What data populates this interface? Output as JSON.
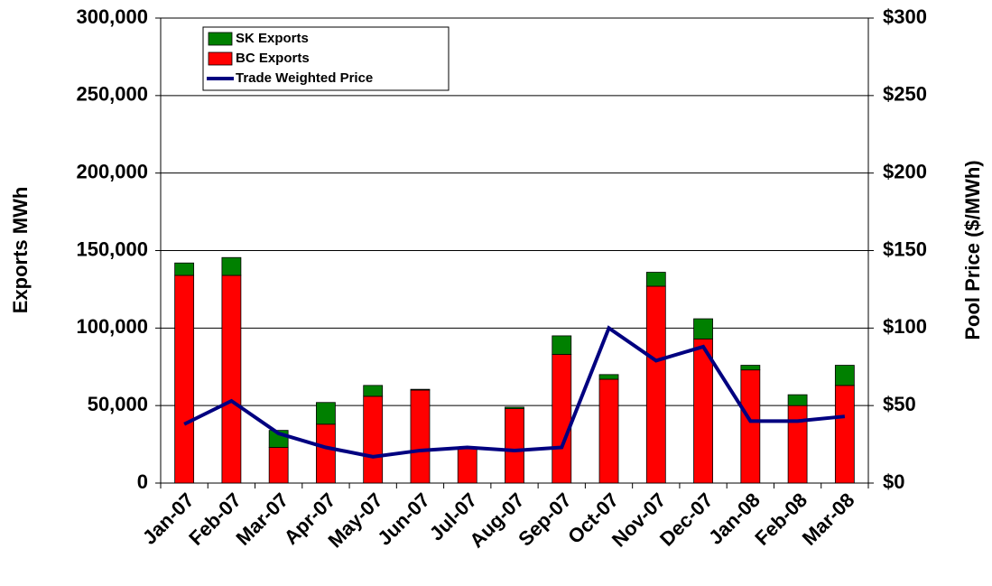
{
  "chart_data": {
    "type": "bar",
    "categories": [
      "Jan-07",
      "Feb-07",
      "Mar-07",
      "Apr-07",
      "May-07",
      "Jun-07",
      "Jul-07",
      "Aug-07",
      "Sep-07",
      "Oct-07",
      "Nov-07",
      "Dec-07",
      "Jan-08",
      "Feb-08",
      "Mar-08"
    ],
    "series": [
      {
        "name": "SK Exports",
        "type": "bar",
        "color": "#008000",
        "values": [
          8000,
          11500,
          11000,
          14000,
          7000,
          500,
          0,
          1000,
          12000,
          3000,
          9000,
          13000,
          3000,
          7000,
          13000
        ]
      },
      {
        "name": "BC Exports",
        "type": "bar",
        "color": "#ff0000",
        "values": [
          134000,
          134000,
          23000,
          38000,
          56000,
          60000,
          23000,
          48000,
          83000,
          67000,
          127000,
          93000,
          73000,
          50000,
          63000
        ]
      },
      {
        "name": "Trade Weighted Price",
        "type": "line",
        "axis": "y2",
        "color": "#000080",
        "values": [
          38,
          53,
          32,
          23,
          17,
          21,
          23,
          21,
          23,
          100,
          79,
          88,
          40,
          40,
          43
        ]
      }
    ],
    "ylabel": "Exports MWh",
    "y2label": "Pool Price ($/MWh)",
    "ylim": [
      0,
      300000
    ],
    "yticks": [
      0,
      {
        "value": 50000,
        "label": "50,000"
      },
      {
        "value": 100000,
        "label": "100,000"
      },
      {
        "value": 150000,
        "label": "150,000"
      },
      {
        "value": 200000,
        "label": "200,000"
      },
      {
        "value": 250000,
        "label": "250,000"
      },
      {
        "value": 300000,
        "label": "300,000"
      }
    ],
    "y2lim": [
      0,
      300
    ],
    "y2ticks": [
      {
        "value": 0,
        "label": "$0"
      },
      {
        "value": 50,
        "label": "$50"
      },
      {
        "value": 100,
        "label": "$100"
      },
      {
        "value": 150,
        "label": "$150"
      },
      {
        "value": 200,
        "label": "$200"
      },
      {
        "value": 250,
        "label": "$250"
      },
      {
        "value": 300,
        "label": "$300"
      }
    ],
    "grid": true,
    "legend": "upper left"
  }
}
